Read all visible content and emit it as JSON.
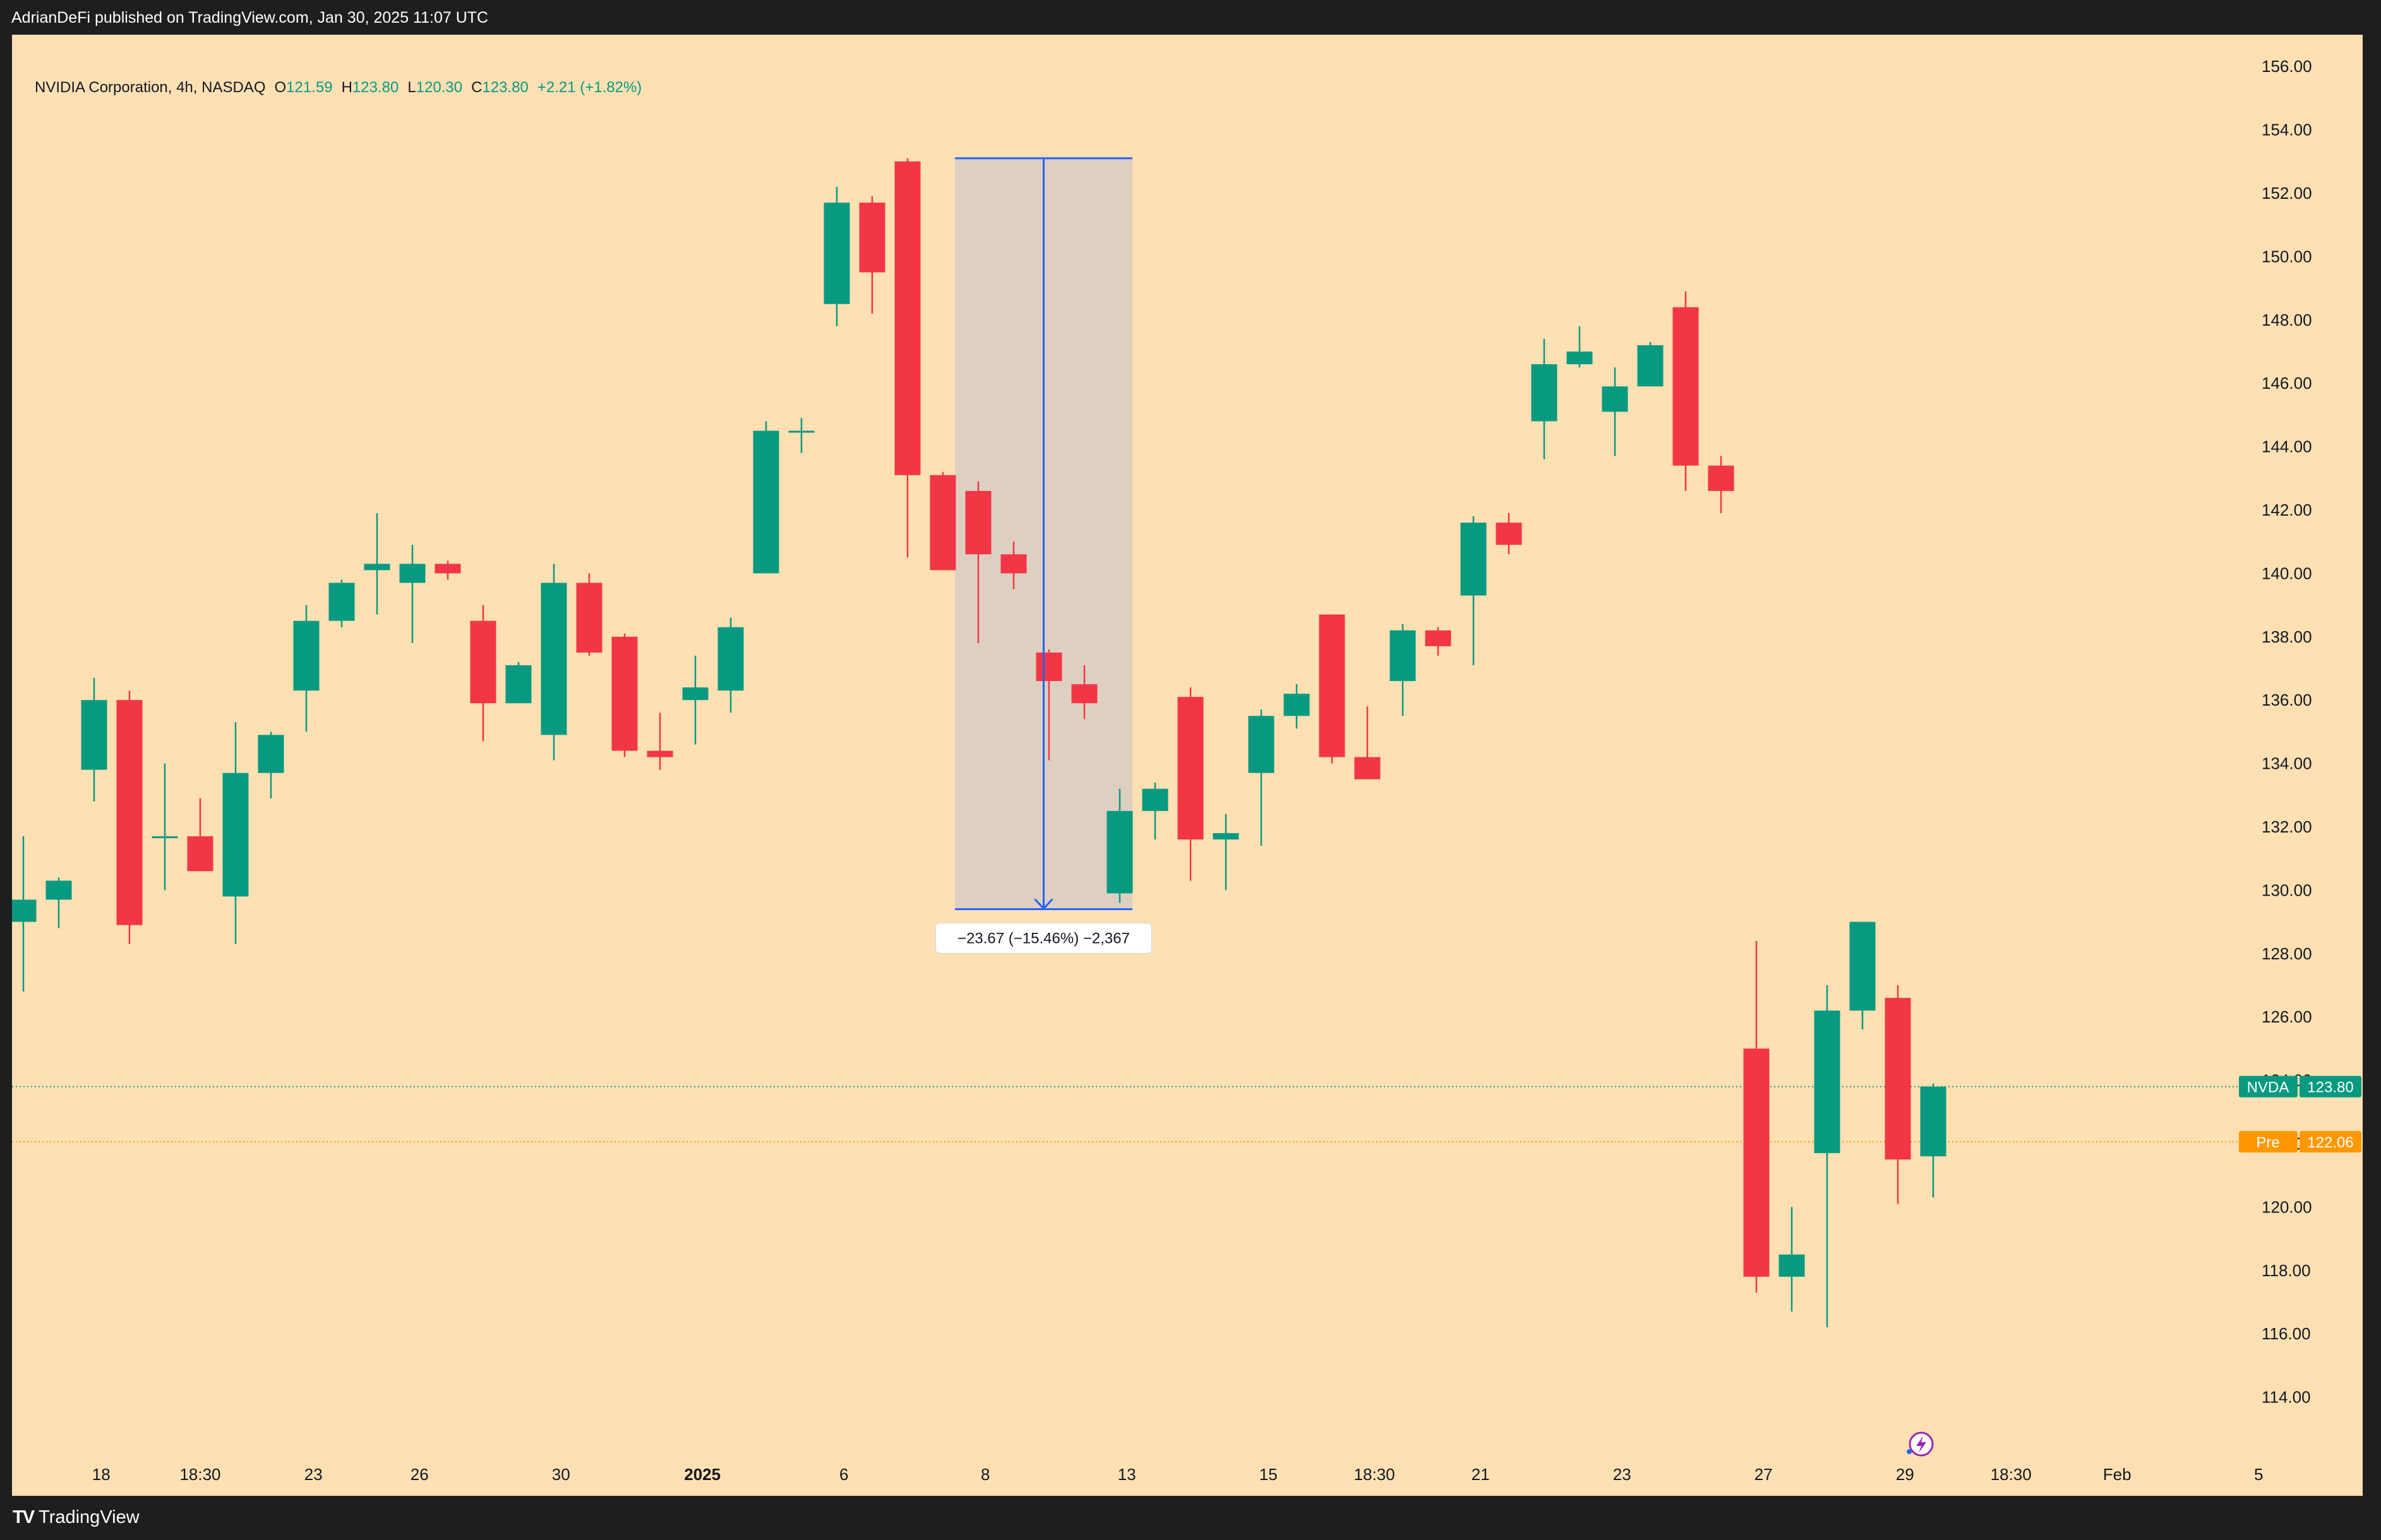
{
  "header": {
    "publisher_text": "AdrianDeFi published on TradingView.com, Jan 30, 2025 11:07 UTC"
  },
  "footer": {
    "brand_text": "TradingView",
    "brand_logo": "TV"
  },
  "legend": {
    "symbol_text": "NVIDIA Corporation, 4h, NASDAQ",
    "open_label": "O",
    "open_value": "121.59",
    "high_label": "H",
    "high_value": "123.80",
    "low_label": "L",
    "low_value": "120.30",
    "close_label": "C",
    "close_value": "123.80",
    "change_text": "+2.21 (+1.82%)"
  },
  "colors": {
    "background": "#fee0b3",
    "up": "#089981",
    "down": "#f23645",
    "measure_line": "#2962ff",
    "measure_fill": "#ddd0c1",
    "pre_market": "#ff9800"
  },
  "price_labels": {
    "last": {
      "name": "NVDA",
      "value": "123.80",
      "price": 123.8
    },
    "pre": {
      "name": "Pre",
      "value": "122.06",
      "price": 122.06
    }
  },
  "measure": {
    "label": "−23.67 (−15.46%) −2,367",
    "from_price": 153.1,
    "to_price": 129.4,
    "from_bar": 26,
    "to_bar": 31
  },
  "icons": {
    "flash": "flash-icon"
  },
  "chart_data": {
    "type": "candlestick",
    "symbol": "NVDA",
    "interval": "4h",
    "ylim": [
      112.0,
      157.5
    ],
    "yticks": [
      "114.00",
      "116.00",
      "118.00",
      "120.00",
      "122.00",
      "124.00",
      "126.00",
      "128.00",
      "130.00",
      "132.00",
      "134.00",
      "136.00",
      "138.00",
      "140.00",
      "142.00",
      "144.00",
      "146.00",
      "148.00",
      "150.00",
      "152.00",
      "154.00",
      "156.00"
    ],
    "xticks": [
      {
        "label": "18",
        "bar": 2.2,
        "bold": false
      },
      {
        "label": "18:30",
        "bar": 5,
        "bold": false
      },
      {
        "label": "23",
        "bar": 8.2,
        "bold": false
      },
      {
        "label": "26",
        "bar": 11.2,
        "bold": false
      },
      {
        "label": "30",
        "bar": 15.2,
        "bold": false
      },
      {
        "label": "2025",
        "bar": 19.2,
        "bold": true
      },
      {
        "label": "6",
        "bar": 23.2,
        "bold": false
      },
      {
        "label": "8",
        "bar": 27.2,
        "bold": false
      },
      {
        "label": "13",
        "bar": 31.2,
        "bold": false
      },
      {
        "label": "15",
        "bar": 35.2,
        "bold": false
      },
      {
        "label": "18:30",
        "bar": 38.2,
        "bold": false
      },
      {
        "label": "21",
        "bar": 41.2,
        "bold": false
      },
      {
        "label": "23",
        "bar": 45.2,
        "bold": false
      },
      {
        "label": "27",
        "bar": 49.2,
        "bold": false
      },
      {
        "label": "29",
        "bar": 53.2,
        "bold": false
      },
      {
        "label": "18:30",
        "bar": 56.2,
        "bold": false
      },
      {
        "label": "Feb",
        "bar": 59.2,
        "bold": false
      },
      {
        "label": "5",
        "bar": 63.2,
        "bold": false
      }
    ],
    "candles": [
      {
        "o": 129.0,
        "h": 131.7,
        "l": 126.8,
        "c": 129.7
      },
      {
        "o": 129.7,
        "h": 130.4,
        "l": 128.8,
        "c": 130.3
      },
      {
        "o": 133.8,
        "h": 136.7,
        "l": 132.8,
        "c": 136.0
      },
      {
        "o": 136.0,
        "h": 136.3,
        "l": 128.3,
        "c": 128.9
      },
      {
        "o": 131.7,
        "h": 134.0,
        "l": 130.0,
        "c": 131.7
      },
      {
        "o": 131.7,
        "h": 132.9,
        "l": 130.6,
        "c": 130.6
      },
      {
        "o": 129.8,
        "h": 135.3,
        "l": 128.3,
        "c": 133.7
      },
      {
        "o": 133.7,
        "h": 135.0,
        "l": 132.9,
        "c": 134.9
      },
      {
        "o": 136.3,
        "h": 139.0,
        "l": 135.0,
        "c": 138.5
      },
      {
        "o": 138.5,
        "h": 139.8,
        "l": 138.3,
        "c": 139.7
      },
      {
        "o": 140.1,
        "h": 141.9,
        "l": 138.7,
        "c": 140.3
      },
      {
        "o": 139.7,
        "h": 140.9,
        "l": 137.8,
        "c": 140.3
      },
      {
        "o": 140.3,
        "h": 140.4,
        "l": 139.8,
        "c": 140.0
      },
      {
        "o": 138.5,
        "h": 139.0,
        "l": 134.7,
        "c": 135.9
      },
      {
        "o": 135.9,
        "h": 137.2,
        "l": 135.9,
        "c": 137.1
      },
      {
        "o": 134.9,
        "h": 140.3,
        "l": 134.1,
        "c": 139.7
      },
      {
        "o": 139.7,
        "h": 140.0,
        "l": 137.4,
        "c": 137.5
      },
      {
        "o": 138.0,
        "h": 138.1,
        "l": 134.2,
        "c": 134.4
      },
      {
        "o": 134.4,
        "h": 135.6,
        "l": 133.8,
        "c": 134.2
      },
      {
        "o": 136.0,
        "h": 137.4,
        "l": 134.6,
        "c": 136.4
      },
      {
        "o": 136.3,
        "h": 138.6,
        "l": 135.6,
        "c": 138.3
      },
      {
        "o": 140.0,
        "h": 144.8,
        "l": 140.0,
        "c": 144.5
      },
      {
        "o": 144.5,
        "h": 144.9,
        "l": 143.8,
        "c": 144.5
      },
      {
        "o": 148.5,
        "h": 152.2,
        "l": 147.8,
        "c": 151.7
      },
      {
        "o": 151.7,
        "h": 151.9,
        "l": 148.2,
        "c": 149.5
      },
      {
        "o": 153.0,
        "h": 153.1,
        "l": 140.5,
        "c": 143.1
      },
      {
        "o": 143.1,
        "h": 143.2,
        "l": 140.1,
        "c": 140.1
      },
      {
        "o": 142.6,
        "h": 142.9,
        "l": 137.8,
        "c": 140.6
      },
      {
        "o": 140.6,
        "h": 141.0,
        "l": 139.5,
        "c": 140.0
      },
      {
        "o": 137.5,
        "h": 137.6,
        "l": 134.1,
        "c": 136.6
      },
      {
        "o": 136.5,
        "h": 137.1,
        "l": 135.4,
        "c": 135.9
      },
      {
        "o": 129.9,
        "h": 133.2,
        "l": 129.6,
        "c": 132.5
      },
      {
        "o": 132.5,
        "h": 133.4,
        "l": 131.6,
        "c": 133.2
      },
      {
        "o": 136.1,
        "h": 136.4,
        "l": 130.3,
        "c": 131.6
      },
      {
        "o": 131.6,
        "h": 132.4,
        "l": 130.0,
        "c": 131.8
      },
      {
        "o": 133.7,
        "h": 135.7,
        "l": 131.4,
        "c": 135.5
      },
      {
        "o": 135.5,
        "h": 136.5,
        "l": 135.1,
        "c": 136.2
      },
      {
        "o": 138.7,
        "h": 138.7,
        "l": 134.0,
        "c": 134.2
      },
      {
        "o": 134.2,
        "h": 135.8,
        "l": 133.5,
        "c": 133.5
      },
      {
        "o": 136.6,
        "h": 138.4,
        "l": 135.5,
        "c": 138.2
      },
      {
        "o": 138.2,
        "h": 138.3,
        "l": 137.4,
        "c": 137.7
      },
      {
        "o": 139.3,
        "h": 141.8,
        "l": 137.1,
        "c": 141.6
      },
      {
        "o": 141.6,
        "h": 141.9,
        "l": 140.6,
        "c": 140.9
      },
      {
        "o": 144.8,
        "h": 147.4,
        "l": 143.6,
        "c": 146.6
      },
      {
        "o": 146.6,
        "h": 147.8,
        "l": 146.5,
        "c": 147.0
      },
      {
        "o": 145.1,
        "h": 146.5,
        "l": 143.7,
        "c": 145.9
      },
      {
        "o": 145.9,
        "h": 147.3,
        "l": 145.9,
        "c": 147.2
      },
      {
        "o": 148.4,
        "h": 148.9,
        "l": 142.6,
        "c": 143.4
      },
      {
        "o": 143.4,
        "h": 143.7,
        "l": 141.9,
        "c": 142.6
      },
      {
        "o": 125.0,
        "h": 128.4,
        "l": 117.3,
        "c": 117.8
      },
      {
        "o": 117.8,
        "h": 120.0,
        "l": 116.7,
        "c": 118.5
      },
      {
        "o": 121.7,
        "h": 127.0,
        "l": 116.2,
        "c": 126.2
      },
      {
        "o": 126.2,
        "h": 129.0,
        "l": 125.6,
        "c": 129.0
      },
      {
        "o": 126.6,
        "h": 127.0,
        "l": 120.1,
        "c": 121.5
      },
      {
        "o": 121.6,
        "h": 123.9,
        "l": 120.3,
        "c": 123.8
      }
    ]
  }
}
